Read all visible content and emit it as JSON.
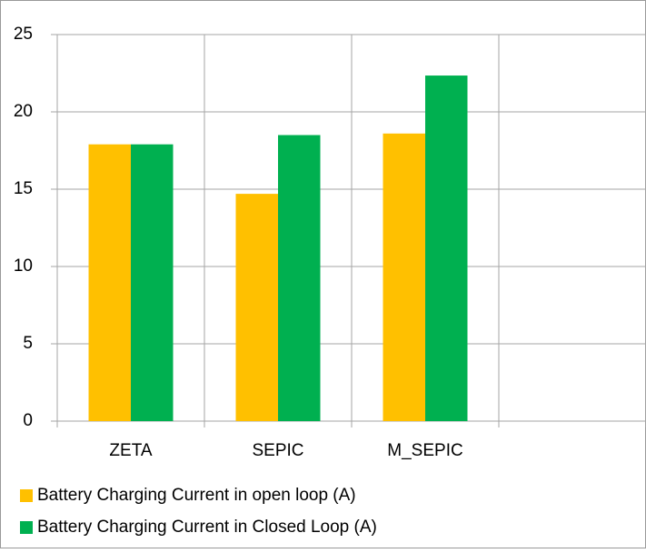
{
  "chart_data": {
    "type": "bar",
    "categories": [
      "ZETA",
      "SEPIC",
      "M_SEPIC",
      null
    ],
    "series": [
      {
        "name": "Battery Charging Current in open loop (A)",
        "color": "#ffc000",
        "values": [
          17.9,
          14.7,
          18.6,
          null
        ]
      },
      {
        "name": "Battery Charging Current in Closed Loop (A)",
        "color": "#00b050",
        "values": [
          17.9,
          18.5,
          22.35,
          null
        ]
      }
    ],
    "ylim": [
      0,
      25
    ],
    "yticks": [
      0,
      5,
      10,
      15,
      20,
      25
    ],
    "grid": true,
    "legend": "bottom"
  }
}
